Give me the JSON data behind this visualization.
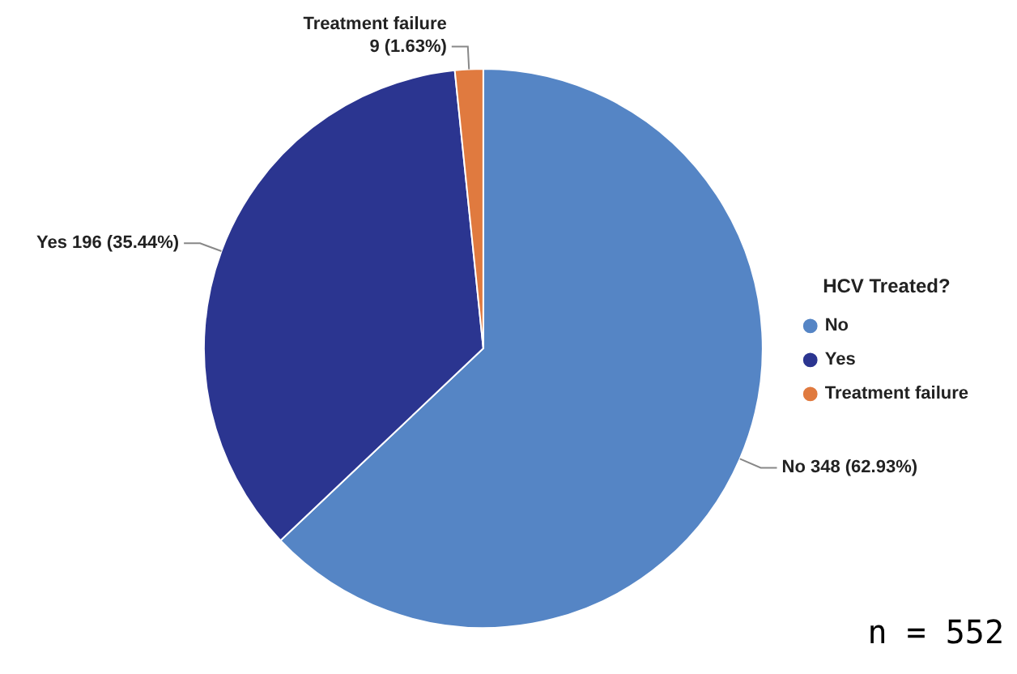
{
  "chart_data": {
    "type": "pie",
    "legend_title": "HCV Treated?",
    "categories": [
      "No",
      "Yes",
      "Treatment failure"
    ],
    "values": [
      348,
      196,
      9
    ],
    "colors": [
      "#5585c5",
      "#2b3590",
      "#e07a3f"
    ],
    "value_labels": [
      "348 (62.93%)",
      "196 (35.44%)",
      "9 (1.63%)"
    ],
    "legend": "right",
    "annotations": [
      "n = 552"
    ]
  }
}
